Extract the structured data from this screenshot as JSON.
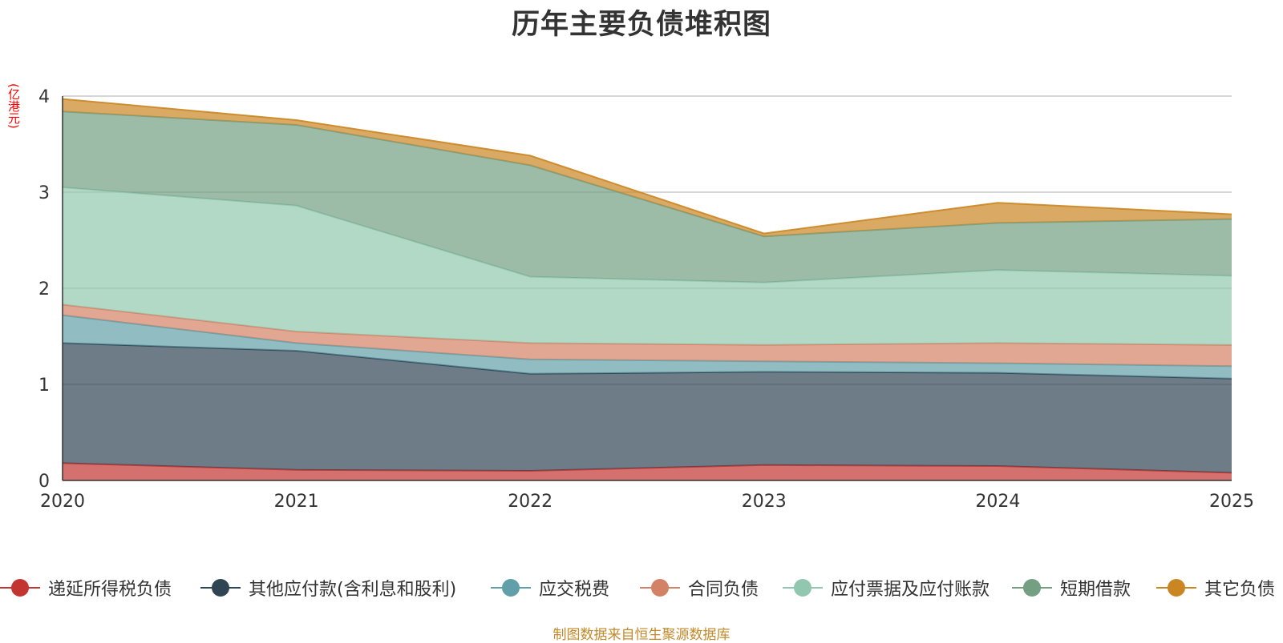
{
  "chart_data": {
    "type": "area",
    "stacked": true,
    "title": "历年主要负债堆积图",
    "ylabel": "(亿港元)",
    "xlabel": "",
    "categories": [
      "2020",
      "2021",
      "2022",
      "2023",
      "2024",
      "2025"
    ],
    "ylim": [
      0,
      4
    ],
    "yticks": [
      "0",
      "1",
      "2",
      "3",
      "4"
    ],
    "grid": true,
    "legend_position": "bottom",
    "series": [
      {
        "name": "递延所得税负债",
        "color": "#c23531",
        "values": [
          0.18,
          0.11,
          0.1,
          0.16,
          0.15,
          0.08
        ]
      },
      {
        "name": "其他应付款(含利息和股利)",
        "color": "#2f4554",
        "values": [
          1.25,
          1.24,
          1.01,
          0.97,
          0.97,
          0.98
        ]
      },
      {
        "name": "应交税费",
        "color": "#61a0a8",
        "values": [
          0.29,
          0.08,
          0.15,
          0.11,
          0.1,
          0.13
        ]
      },
      {
        "name": "合同负债",
        "color": "#d48265",
        "values": [
          0.11,
          0.12,
          0.17,
          0.17,
          0.21,
          0.22
        ]
      },
      {
        "name": "应付票据及应付账款",
        "color": "#91c7ae",
        "values": [
          1.22,
          1.31,
          0.69,
          0.65,
          0.76,
          0.72
        ]
      },
      {
        "name": "短期借款",
        "color": "#749f83",
        "values": [
          0.79,
          0.84,
          1.16,
          0.48,
          0.49,
          0.59
        ]
      },
      {
        "name": "其它负债",
        "color": "#ca8622",
        "values": [
          0.13,
          0.05,
          0.1,
          0.03,
          0.21,
          0.05
        ]
      }
    ]
  },
  "footer": "制图数据来自恒生聚源数据库"
}
